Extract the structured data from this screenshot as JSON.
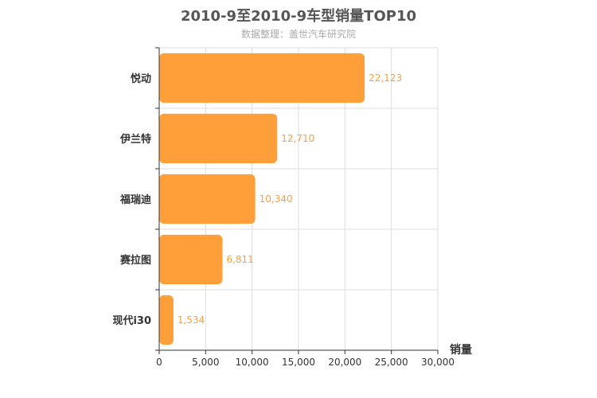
{
  "chart_data": {
    "type": "bar",
    "orientation": "horizontal",
    "title": "2010-9至2010-9车型销量TOP10",
    "subtitle": "数据整理：盖世汽车研究院",
    "xlabel": "销量",
    "ylabel": "",
    "categories": [
      "悦动",
      "伊兰特",
      "福瑞迪",
      "赛拉图",
      "现代i30"
    ],
    "values": [
      22123,
      12710,
      10340,
      6811,
      1534
    ],
    "data_labels": [
      "22,123",
      "12,710",
      "10,340",
      "6,811",
      "1,534"
    ],
    "xlim": [
      0,
      30000
    ],
    "xticks": [
      0,
      5000,
      10000,
      15000,
      20000,
      25000,
      30000
    ],
    "xtick_labels": [
      "0",
      "5,000",
      "10,000",
      "15,000",
      "20,000",
      "25,000",
      "30,000"
    ],
    "grid": true,
    "bar_color": "#ff9f3a",
    "label_color": "#ff9f3a"
  }
}
